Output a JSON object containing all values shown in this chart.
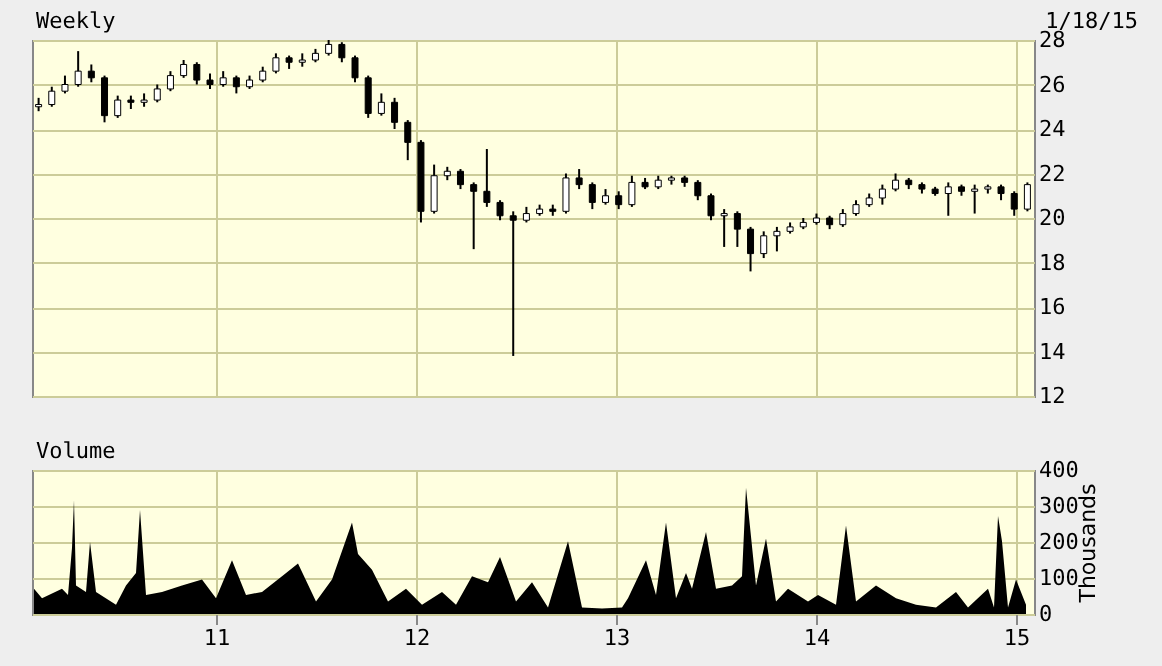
{
  "chart_data": [
    {
      "type": "candlestick",
      "title": "Weekly",
      "annotations": [
        "1/18/15"
      ],
      "color": "#000000",
      "grid": true,
      "tick_labels": "y",
      "xlim": [
        2010.08,
        2015.09
      ],
      "xticks": [
        {
          "value": 2011,
          "label": null
        },
        {
          "value": 2012,
          "label": null
        },
        {
          "value": 2013,
          "label": null
        },
        {
          "value": 2014,
          "label": null
        },
        {
          "value": 2015,
          "label": null
        }
      ],
      "ylim": [
        12,
        28
      ],
      "yticks": [
        12,
        14,
        16,
        18,
        20,
        22,
        24,
        26,
        28
      ],
      "x": [
        2010.113,
        2010.1789,
        2010.2448,
        2010.3108,
        2010.3767,
        2010.4426,
        2010.5085,
        2010.5744,
        2010.6404,
        2010.7063,
        2010.7722,
        2010.8381,
        2010.904,
        2010.97,
        2011.0359,
        2011.1018,
        2011.1677,
        2011.2336,
        2011.2996,
        2011.3655,
        2011.4314,
        2011.4973,
        2011.5632,
        2011.6292,
        2011.6951,
        2011.761,
        2011.8269,
        2011.8928,
        2011.9588,
        2012.0247,
        2012.0906,
        2012.1565,
        2012.2224,
        2012.2884,
        2012.3543,
        2012.4202,
        2012.4861,
        2012.552,
        2012.618,
        2012.6839,
        2012.7498,
        2012.8157,
        2012.8816,
        2012.9476,
        2013.0135,
        2013.0794,
        2013.1453,
        2013.2112,
        2013.2772,
        2013.3431,
        2013.409,
        2013.4749,
        2013.5408,
        2013.6068,
        2013.6727,
        2013.7386,
        2013.8045,
        2013.8704,
        2013.9364,
        2014.0023,
        2014.0682,
        2014.1341,
        2014.2,
        2014.266,
        2014.3319,
        2014.3978,
        2014.4637,
        2014.5296,
        2014.5956,
        2014.6615,
        2014.7274,
        2014.7933,
        2014.8592,
        2014.9252,
        2014.9911,
        2015.057
      ],
      "ohlc": [
        [
          25.0,
          25.4,
          24.8,
          25.1
        ],
        [
          25.1,
          25.9,
          25.0,
          25.7
        ],
        [
          25.7,
          26.4,
          25.6,
          26.0
        ],
        [
          26.0,
          27.5,
          25.9,
          26.6
        ],
        [
          26.6,
          26.9,
          26.1,
          26.3
        ],
        [
          26.3,
          26.4,
          24.3,
          24.6
        ],
        [
          24.6,
          25.5,
          24.5,
          25.3
        ],
        [
          25.3,
          25.5,
          24.9,
          25.2
        ],
        [
          25.2,
          25.6,
          25.0,
          25.3
        ],
        [
          25.3,
          26.0,
          25.2,
          25.8
        ],
        [
          25.8,
          26.6,
          25.7,
          26.4
        ],
        [
          26.4,
          27.1,
          26.3,
          26.9
        ],
        [
          26.9,
          27.0,
          26.0,
          26.2
        ],
        [
          26.2,
          26.5,
          25.8,
          26.0
        ],
        [
          26.0,
          26.6,
          25.9,
          26.3
        ],
        [
          26.3,
          26.4,
          25.6,
          25.9
        ],
        [
          25.9,
          26.4,
          25.8,
          26.2
        ],
        [
          26.2,
          26.8,
          26.1,
          26.6
        ],
        [
          26.6,
          27.4,
          26.5,
          27.2
        ],
        [
          27.2,
          27.3,
          26.7,
          27.0
        ],
        [
          27.0,
          27.4,
          26.8,
          27.1
        ],
        [
          27.1,
          27.6,
          27.0,
          27.4
        ],
        [
          27.4,
          28.0,
          27.3,
          27.8
        ],
        [
          27.8,
          27.9,
          27.0,
          27.2
        ],
        [
          27.2,
          27.3,
          26.1,
          26.3
        ],
        [
          26.3,
          26.4,
          24.5,
          24.7
        ],
        [
          24.7,
          25.6,
          24.6,
          25.2
        ],
        [
          25.2,
          25.4,
          24.0,
          24.3
        ],
        [
          24.3,
          24.4,
          22.6,
          23.4
        ],
        [
          23.4,
          23.5,
          19.8,
          20.3
        ],
        [
          20.3,
          22.4,
          20.2,
          21.9
        ],
        [
          21.9,
          22.3,
          21.7,
          22.1
        ],
        [
          22.1,
          22.2,
          21.3,
          21.5
        ],
        [
          21.5,
          21.6,
          18.6,
          21.2
        ],
        [
          21.2,
          23.1,
          20.5,
          20.7
        ],
        [
          20.7,
          20.8,
          19.9,
          20.1
        ],
        [
          20.1,
          20.3,
          13.8,
          19.9
        ],
        [
          19.9,
          20.5,
          19.8,
          20.2
        ],
        [
          20.2,
          20.6,
          20.1,
          20.4
        ],
        [
          20.4,
          20.6,
          20.1,
          20.3
        ],
        [
          20.3,
          22.0,
          20.2,
          21.8
        ],
        [
          21.8,
          22.2,
          21.3,
          21.5
        ],
        [
          21.5,
          21.6,
          20.4,
          20.7
        ],
        [
          20.7,
          21.3,
          20.6,
          21.0
        ],
        [
          21.0,
          21.2,
          20.4,
          20.6
        ],
        [
          20.6,
          21.9,
          20.5,
          21.6
        ],
        [
          21.6,
          21.8,
          21.3,
          21.4
        ],
        [
          21.4,
          21.9,
          21.3,
          21.7
        ],
        [
          21.7,
          21.9,
          21.5,
          21.8
        ],
        [
          21.8,
          21.9,
          21.4,
          21.6
        ],
        [
          21.6,
          21.7,
          20.8,
          21.0
        ],
        [
          21.0,
          21.1,
          19.9,
          20.1
        ],
        [
          20.1,
          20.4,
          18.7,
          20.2
        ],
        [
          20.2,
          20.3,
          18.7,
          19.5
        ],
        [
          19.5,
          19.6,
          17.6,
          18.4
        ],
        [
          18.4,
          19.4,
          18.2,
          19.2
        ],
        [
          19.2,
          19.6,
          18.5,
          19.4
        ],
        [
          19.4,
          19.8,
          19.3,
          19.6
        ],
        [
          19.6,
          20.0,
          19.5,
          19.8
        ],
        [
          19.8,
          20.2,
          19.7,
          20.0
        ],
        [
          20.0,
          20.1,
          19.5,
          19.7
        ],
        [
          19.7,
          20.4,
          19.6,
          20.2
        ],
        [
          20.2,
          20.8,
          20.1,
          20.6
        ],
        [
          20.6,
          21.1,
          20.5,
          20.9
        ],
        [
          20.9,
          21.5,
          20.6,
          21.3
        ],
        [
          21.3,
          22.0,
          21.2,
          21.7
        ],
        [
          21.7,
          21.8,
          21.3,
          21.5
        ],
        [
          21.5,
          21.6,
          21.1,
          21.3
        ],
        [
          21.3,
          21.4,
          21.0,
          21.1
        ],
        [
          21.1,
          21.6,
          20.1,
          21.4
        ],
        [
          21.4,
          21.5,
          21.0,
          21.2
        ],
        [
          21.2,
          21.5,
          20.2,
          21.3
        ],
        [
          21.3,
          21.5,
          21.1,
          21.4
        ],
        [
          21.4,
          21.5,
          20.8,
          21.1
        ],
        [
          21.1,
          21.2,
          20.1,
          20.4
        ],
        [
          20.4,
          21.6,
          20.3,
          21.5
        ]
      ]
    },
    {
      "type": "area",
      "title": "Volume",
      "ylabel": "Thousands",
      "color": "#000000",
      "grid": true,
      "xlim": [
        2010.08,
        2015.09
      ],
      "xticks": [
        {
          "value": 2011,
          "label": "11"
        },
        {
          "value": 2012,
          "label": "12"
        },
        {
          "value": 2013,
          "label": "13"
        },
        {
          "value": 2014,
          "label": "14"
        },
        {
          "value": 2015,
          "label": "15"
        }
      ],
      "ylim": [
        0,
        400
      ],
      "yticks": [
        0,
        100,
        200,
        300,
        400
      ],
      "x": [
        2010.09,
        2010.13,
        2010.23,
        2010.26,
        2010.28,
        2010.29,
        2010.3,
        2010.35,
        2010.37,
        2010.4,
        2010.5,
        2010.55,
        2010.6,
        2010.62,
        2010.65,
        2010.73,
        2010.83,
        2010.93,
        2011.0,
        2011.08,
        2011.15,
        2011.23,
        2011.33,
        2011.41,
        2011.5,
        2011.58,
        2011.68,
        2011.71,
        2011.78,
        2011.86,
        2011.95,
        2012.03,
        2012.13,
        2012.2,
        2012.28,
        2012.36,
        2012.42,
        2012.5,
        2012.58,
        2012.66,
        2012.76,
        2012.83,
        2012.93,
        2013.03,
        2013.06,
        2013.15,
        2013.2,
        2013.25,
        2013.3,
        2013.35,
        2013.38,
        2013.45,
        2013.5,
        2013.58,
        2013.63,
        2013.65,
        2013.7,
        2013.75,
        2013.8,
        2013.86,
        2013.96,
        2014.01,
        2014.1,
        2014.15,
        2014.2,
        2014.3,
        2014.4,
        2014.5,
        2014.6,
        2014.7,
        2014.76,
        2014.86,
        2014.89,
        2014.91,
        2014.93,
        2014.96,
        2015.0,
        2015.05
      ],
      "values": [
        70,
        44,
        70,
        53,
        184,
        316,
        79,
        61,
        200,
        61,
        26,
        79,
        114,
        289,
        53,
        61,
        79,
        96,
        44,
        149,
        53,
        61,
        105,
        140,
        35,
        96,
        254,
        167,
        123,
        35,
        70,
        26,
        61,
        26,
        105,
        88,
        158,
        35,
        88,
        18,
        202,
        18,
        15,
        18,
        44,
        149,
        53,
        254,
        44,
        114,
        70,
        228,
        70,
        79,
        105,
        351,
        79,
        210,
        35,
        70,
        35,
        53,
        26,
        246,
        35,
        79,
        44,
        26,
        18,
        61,
        18,
        70,
        18,
        272,
        202,
        18,
        96,
        26
      ]
    }
  ]
}
